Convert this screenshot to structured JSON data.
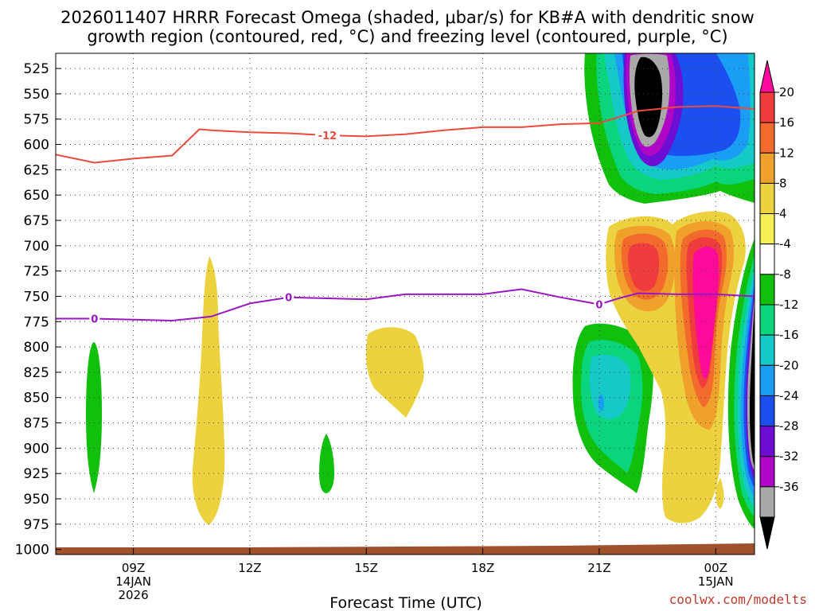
{
  "title": {
    "line1": "2026011407 HRRR Forecast Omega (shaded, μbar/s) for KB#A with dendritic snow",
    "line2": "growth region (contoured, red, °C) and freezing level (contoured, purple, °C)"
  },
  "credit": "coolwx.com/modelts",
  "chart_data": {
    "type": "heatmap",
    "title": "2026011407 HRRR Forecast Omega (shaded, μbar/s) for KB#A with dendritic snow growth region (contoured, red, °C) and freezing level (contoured, purple, °C)",
    "xlabel": "Forecast Time (UTC)",
    "ylabel": "",
    "x_range_hours": [
      7,
      25
    ],
    "y_range_hPa": [
      510,
      1005
    ],
    "y_ticks": [
      525,
      550,
      575,
      600,
      625,
      650,
      675,
      700,
      725,
      750,
      775,
      800,
      825,
      850,
      875,
      900,
      925,
      950,
      975,
      1000
    ],
    "x_ticks": [
      {
        "hour": 9,
        "label": "09Z",
        "sub1": "14JAN",
        "sub2": "2026"
      },
      {
        "hour": 12,
        "label": "12Z",
        "sub1": "",
        "sub2": ""
      },
      {
        "hour": 15,
        "label": "15Z",
        "sub1": "",
        "sub2": ""
      },
      {
        "hour": 18,
        "label": "18Z",
        "sub1": "",
        "sub2": ""
      },
      {
        "hour": 21,
        "label": "21Z",
        "sub1": "",
        "sub2": ""
      },
      {
        "hour": 24,
        "label": "00Z",
        "sub1": "15JAN",
        "sub2": ""
      }
    ],
    "grid": true,
    "colorbar": {
      "labels": [
        "20",
        "16",
        "12",
        "8",
        "4",
        "-4",
        "-8",
        "-12",
        "-16",
        "-20",
        "-24",
        "-28",
        "-32",
        "-36"
      ],
      "colors": [
        "#ff0a9a",
        "#f03c3c",
        "#f26b2d",
        "#f0a12c",
        "#ecd23f",
        "#f5ef55",
        "#ffffff",
        "#11c00c",
        "#0ad47c",
        "#16c9c9",
        "#1a9ef5",
        "#1b4ff0",
        "#6c0ed6",
        "#b006c6",
        "#a9a9a9",
        "#000000"
      ]
    },
    "surface_color": "#a0522d",
    "contours": [
      {
        "name": "dendritic-minus12",
        "label": "-12",
        "color": "#ec4a3c",
        "label_at": [
          8.1,
          592
        ],
        "points": [
          [
            7.0,
            610
          ],
          [
            8.0,
            618
          ],
          [
            9.0,
            614
          ],
          [
            10.0,
            611
          ],
          [
            10.7,
            585
          ],
          [
            11.0,
            586
          ],
          [
            12.0,
            588
          ],
          [
            13.0,
            589
          ],
          [
            14.0,
            591
          ],
          [
            15.0,
            592
          ],
          [
            16.0,
            590
          ],
          [
            17.0,
            586
          ],
          [
            18.0,
            583
          ],
          [
            19.0,
            583
          ],
          [
            20.0,
            580
          ],
          [
            21.0,
            579
          ],
          [
            21.5,
            573
          ],
          [
            22.0,
            567
          ],
          [
            23.0,
            563
          ],
          [
            24.0,
            562
          ],
          [
            25.0,
            565
          ]
        ]
      },
      {
        "name": "freezing-level-0",
        "label": "0",
        "color": "#9a17c4",
        "label_at": [
          8.8,
          751
        ],
        "points": [
          [
            7.0,
            772
          ],
          [
            8.0,
            772
          ],
          [
            9.0,
            773
          ],
          [
            10.0,
            774
          ],
          [
            11.0,
            770
          ],
          [
            12.0,
            757
          ],
          [
            13.0,
            751
          ],
          [
            14.0,
            752
          ],
          [
            15.0,
            753
          ],
          [
            16.0,
            748
          ],
          [
            17.0,
            748
          ],
          [
            18.0,
            748
          ],
          [
            19.0,
            743
          ],
          [
            20.0,
            751
          ],
          [
            21.0,
            758
          ],
          [
            21.5,
            752
          ],
          [
            22.0,
            747
          ],
          [
            23.0,
            748
          ],
          [
            24.0,
            748
          ],
          [
            25.0,
            750
          ]
        ]
      }
    ]
  }
}
